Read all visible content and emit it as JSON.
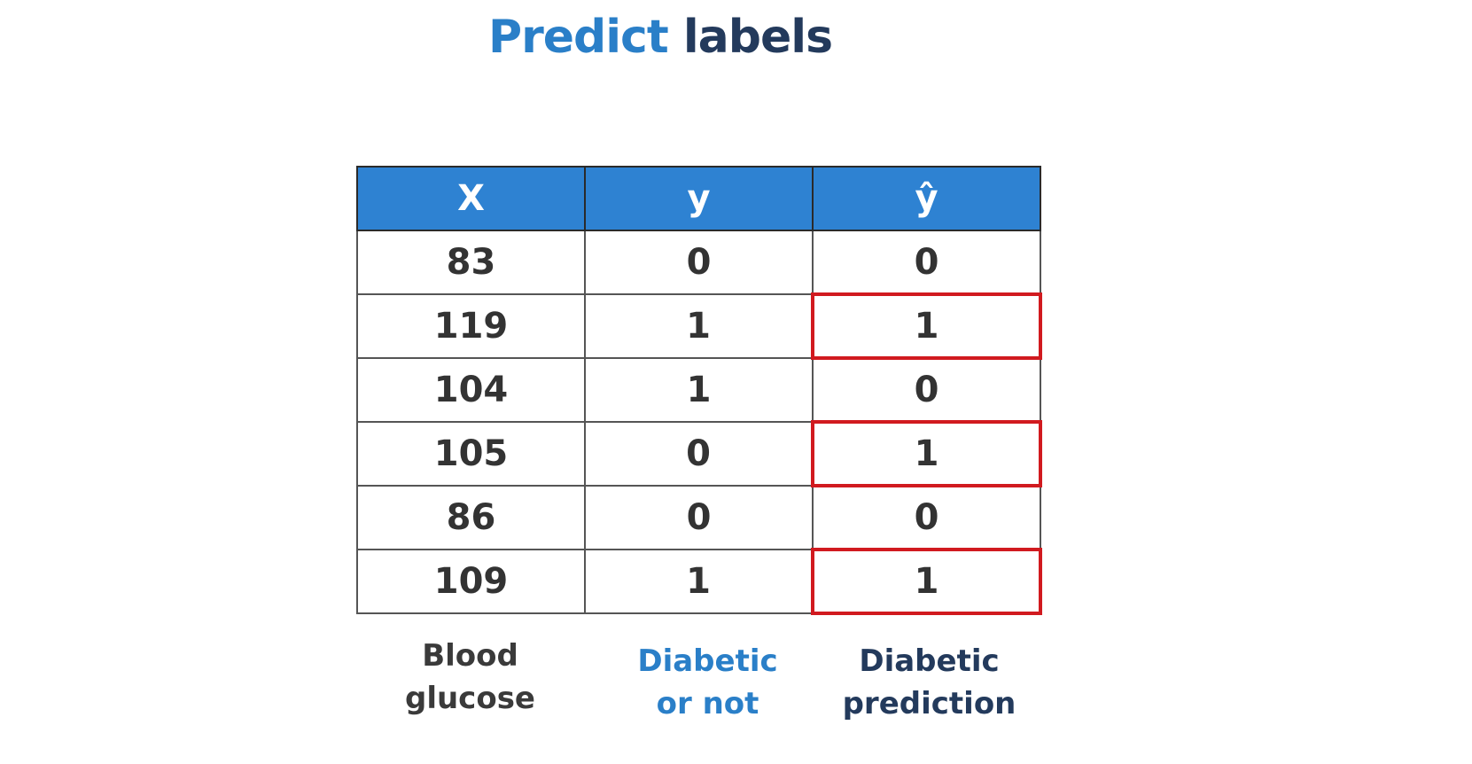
{
  "title": {
    "word1": "Predict",
    "word2": "labels"
  },
  "table": {
    "headers": [
      "X",
      "y",
      "ŷ"
    ],
    "rows": [
      {
        "x": "83",
        "y": "0",
        "yhat": "0"
      },
      {
        "x": "119",
        "y": "1",
        "yhat": "1"
      },
      {
        "x": "104",
        "y": "1",
        "yhat": "0"
      },
      {
        "x": "105",
        "y": "0",
        "yhat": "1"
      },
      {
        "x": "86",
        "y": "0",
        "yhat": "0"
      },
      {
        "x": "109",
        "y": "1",
        "yhat": "1"
      }
    ]
  },
  "captions": {
    "x": {
      "line1": "Blood",
      "line2": "glucose"
    },
    "y": {
      "line1": "Diabetic",
      "line2": "or not"
    },
    "yhat": {
      "line1": "Diabetic",
      "line2": "prediction"
    }
  },
  "colors": {
    "accent_blue": "#2a7fc8",
    "header_blue": "#2e82d2",
    "dark_navy": "#233a5c",
    "highlight_red": "#d11a1f"
  }
}
